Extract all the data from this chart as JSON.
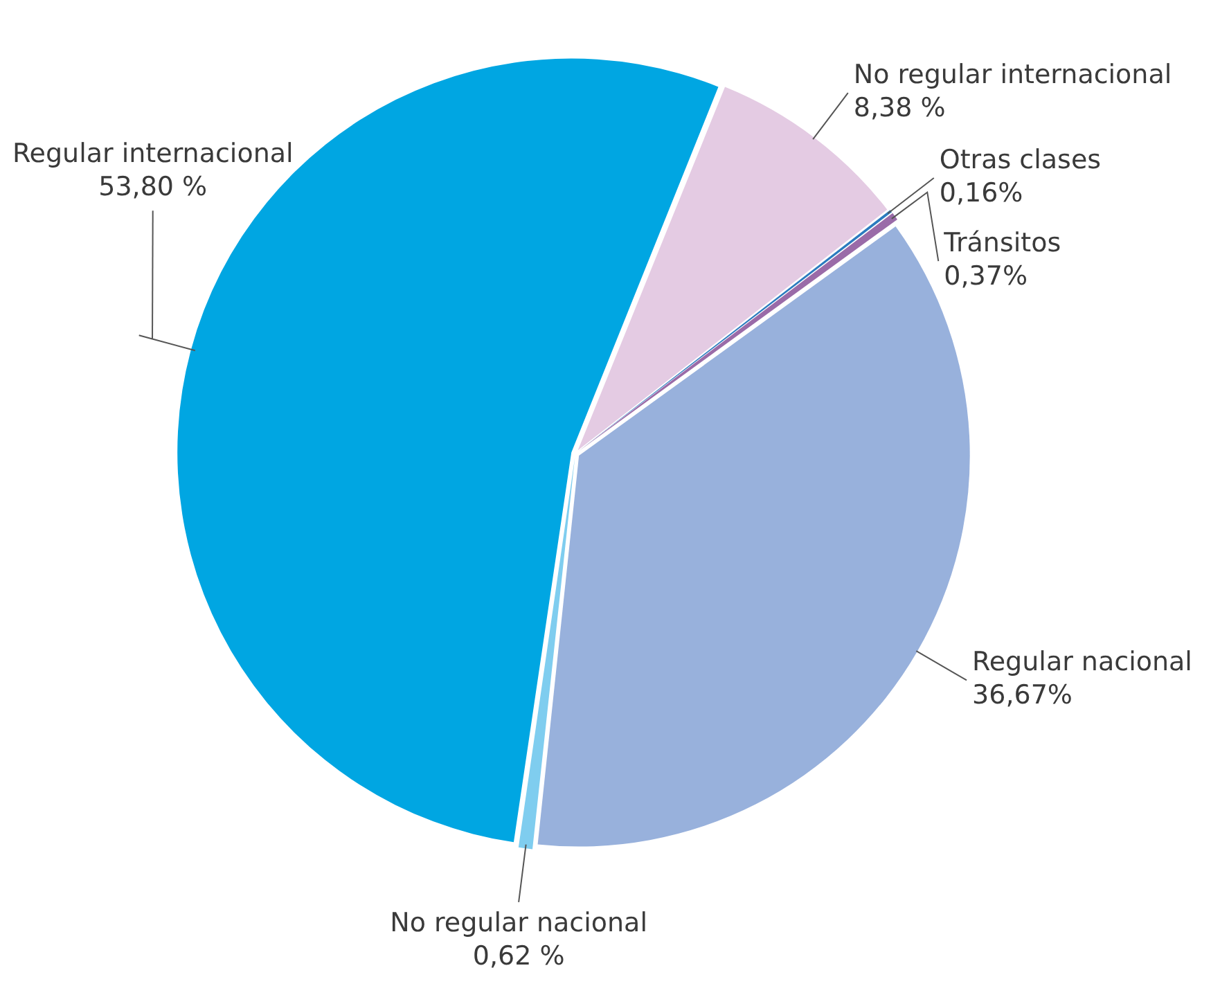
{
  "chart_data": {
    "type": "pie",
    "categories": [
      "No regular internacional",
      "Otras clases",
      "Tránsitos",
      "Regular nacional",
      "No regular nacional",
      "Regular internacional"
    ],
    "values": [
      8.38,
      0.16,
      0.37,
      36.67,
      0.62,
      53.8
    ],
    "value_labels": [
      "8,38 %",
      "0,16%",
      "0,37%",
      "36,67%",
      "0,62 %",
      "53,80 %"
    ],
    "colors": [
      "#e4cbe3",
      "#2b7bbf",
      "#9a6ba8",
      "#98b1dc",
      "#7fcdef",
      "#00a6e2"
    ],
    "legend": false
  }
}
